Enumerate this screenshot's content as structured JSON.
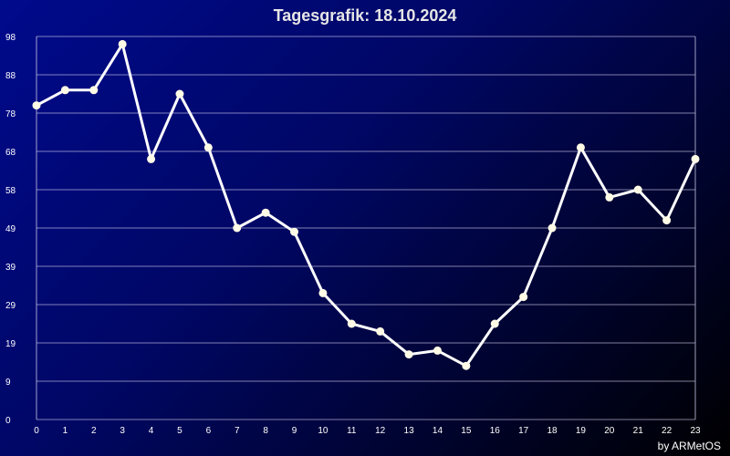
{
  "chart_data": {
    "type": "line",
    "title": "Tagesgrafik: 18.10.2024",
    "xlabel": "",
    "ylabel": "",
    "x": [
      0,
      1,
      2,
      3,
      4,
      5,
      6,
      7,
      8,
      9,
      10,
      11,
      12,
      13,
      14,
      15,
      16,
      17,
      18,
      19,
      20,
      21,
      22,
      23
    ],
    "x_ticks": [
      "0",
      "1",
      "2",
      "3",
      "4",
      "5",
      "6",
      "7",
      "8",
      "9",
      "10",
      "11",
      "12",
      "13",
      "14",
      "15",
      "16",
      "17",
      "18",
      "19",
      "20",
      "21",
      "22",
      "23"
    ],
    "series": [
      {
        "values": [
          82,
          86,
          86,
          98,
          68,
          85,
          71,
          50,
          54,
          49,
          33,
          25,
          23,
          17,
          18,
          14,
          25,
          32,
          50,
          71,
          58,
          60,
          52,
          68
        ]
      }
    ],
    "y_ticks": [
      "0",
      "9",
      "19",
      "29",
      "39",
      "49",
      "58",
      "68",
      "78",
      "88",
      "98"
    ],
    "ylim": [
      0,
      100
    ],
    "grid": true,
    "credit": "by ARMetOS",
    "colors": {
      "line": "#ffffff",
      "marker": "#fffbe6",
      "grid": "#c8c8e6",
      "title": "#e6e6e6"
    }
  }
}
